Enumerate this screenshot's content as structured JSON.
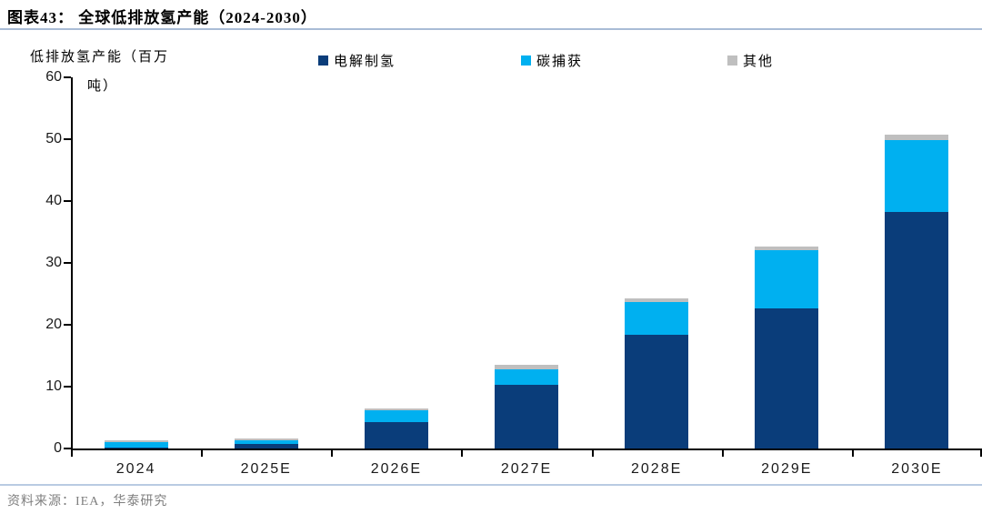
{
  "header": {
    "title": "图表43：  全球低排放氢产能（2024-2030）"
  },
  "footer": {
    "source": "资料来源：IEA，华泰研究"
  },
  "chart_data": {
    "type": "bar",
    "stacked": true,
    "title": "全球低排放氢产能（2024-2030）",
    "ylabel": "低排放氢产能（百万吨）",
    "ylabel_line1": "低排放氢产能（百万",
    "ylabel_line2": "吨）",
    "xlabel": "",
    "categories": [
      "2024",
      "2025E",
      "2026E",
      "2027E",
      "2028E",
      "2029E",
      "2030E"
    ],
    "series": [
      {
        "name": "电解制氢",
        "color": "#0a3d7a",
        "values": [
          0.1,
          0.7,
          4.2,
          10.3,
          18.4,
          22.7,
          38.3
        ]
      },
      {
        "name": "碳捕获",
        "color": "#00b0f0",
        "values": [
          1.0,
          0.6,
          2.0,
          2.5,
          5.3,
          9.4,
          11.5
        ]
      },
      {
        "name": "其他",
        "color": "#bfbfbf",
        "values": [
          0.2,
          0.3,
          0.3,
          0.8,
          0.6,
          0.5,
          1.0
        ]
      }
    ],
    "ylim": [
      0,
      60
    ],
    "yticks": [
      0,
      10,
      20,
      30,
      40,
      50,
      60
    ],
    "grid": false,
    "legend_position": "top",
    "colors": {
      "axis": "#000000",
      "title_rule": "#a9bcd6",
      "footer_rule": "#b9cbe2",
      "source_text": "#7f7f7f"
    }
  }
}
